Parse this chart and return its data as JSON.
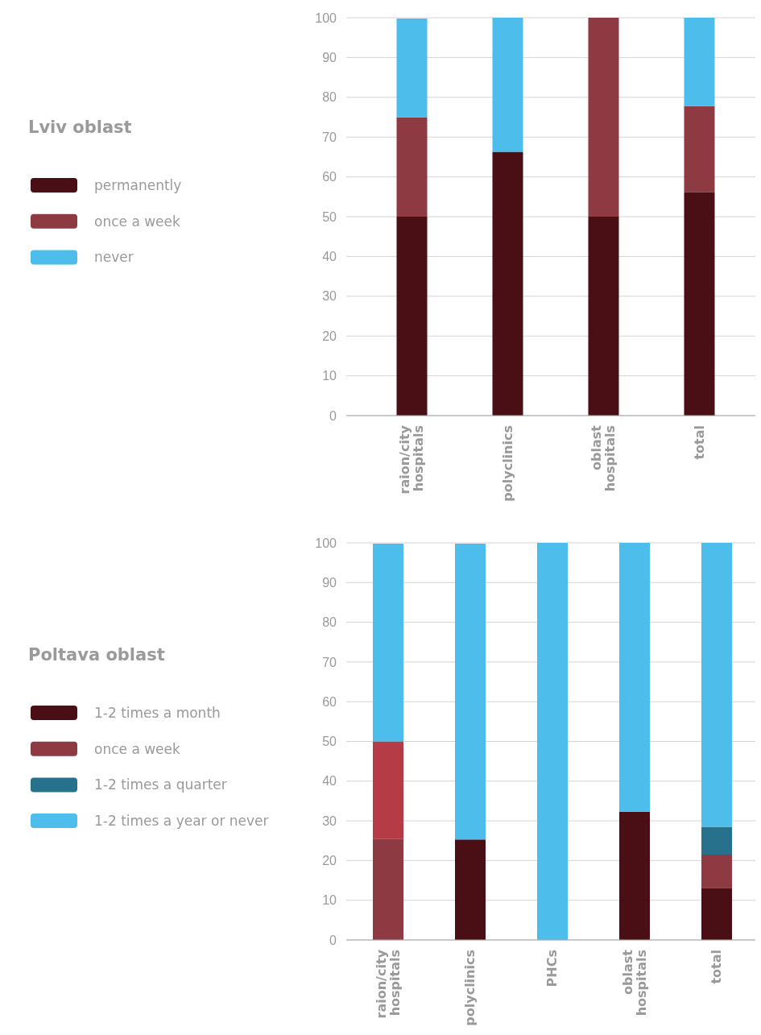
{
  "chart_data": [
    {
      "type": "bar",
      "legend_title": "Lviv oblast",
      "stacked": true,
      "categories": [
        "raion/city hospitals",
        "polyclinics",
        "oblast hospitals",
        "total"
      ],
      "series": [
        {
          "name": "permanently",
          "color": "#4a0f15",
          "values": [
            50,
            66.3,
            50,
            56.2
          ]
        },
        {
          "name": "once a week",
          "color": "#8d3a42",
          "values": [
            25,
            0,
            50,
            21.6
          ]
        },
        {
          "name": "never",
          "color": "#4dbdec",
          "values": [
            24.8,
            33.7,
            0,
            22.2
          ]
        }
      ],
      "ylim": [
        0,
        100
      ],
      "yticks": [
        0,
        10,
        20,
        30,
        40,
        50,
        60,
        70,
        80,
        90,
        100
      ],
      "grid": "y",
      "legend": "left"
    },
    {
      "type": "bar",
      "legend_title": "Poltava oblast",
      "stacked": true,
      "categories": [
        "raion/city hospitals",
        "polyclinics",
        "PHCs",
        "oblast hospitals",
        "total"
      ],
      "series": [
        {
          "name": "1-2 times a month",
          "color": "#4a0f15",
          "colors": [
            "#8d3a42",
            "#4a0f15",
            "#4a0f15",
            "#4a0f15",
            "#4a0f15"
          ],
          "values": [
            25.5,
            25.3,
            0,
            32.3,
            13
          ]
        },
        {
          "name": "once a week",
          "color": "#8d3a42",
          "colors": [
            "#b53c47",
            "#8d3a42",
            "#8d3a42",
            "#8d3a42",
            "#8d3a42"
          ],
          "values": [
            24.5,
            0,
            0,
            0,
            8.5
          ]
        },
        {
          "name": "1-2 times a quarter",
          "color": "#27718c",
          "values": [
            0,
            0,
            0,
            0,
            7
          ]
        },
        {
          "name": "1-2 times a year or never",
          "color": "#4dbdec",
          "values": [
            49.8,
            74.5,
            100,
            67.7,
            71.5
          ]
        }
      ],
      "ylim": [
        0,
        100
      ],
      "yticks": [
        0,
        10,
        20,
        30,
        40,
        50,
        60,
        70,
        80,
        90,
        100
      ],
      "grid": "y",
      "legend": "left"
    }
  ]
}
